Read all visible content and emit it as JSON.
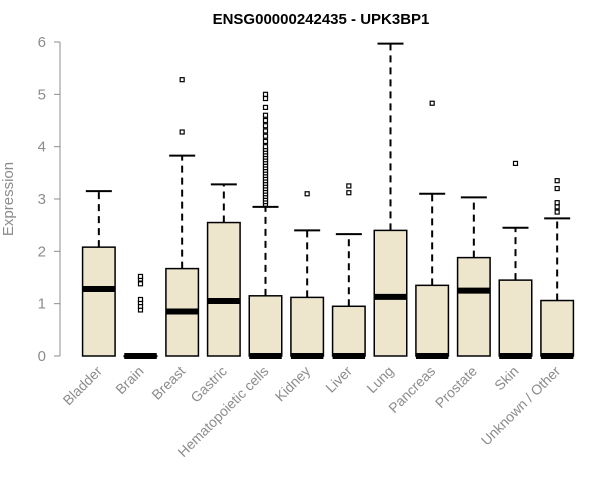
{
  "chart_data": {
    "type": "boxplot",
    "title": "ENSG00000242435 - UPK3BP1",
    "xlabel": "",
    "ylabel": "Expression",
    "ylim": [
      0,
      6
    ],
    "yticks": [
      0,
      1,
      2,
      3,
      4,
      5,
      6
    ],
    "grid": false,
    "box_color": "#ede6cd",
    "categories": [
      "Bladder",
      "Brain",
      "Breast",
      "Gastric",
      "Hematopoietic cells",
      "Kidney",
      "Liver",
      "Lung",
      "Pancreas",
      "Prostate",
      "Skin",
      "Unknown / Other"
    ],
    "boxes": [
      {
        "whisker_low": 0,
        "q1": 0,
        "median": 1.28,
        "q3": 2.08,
        "whisker_high": 3.15,
        "outliers": []
      },
      {
        "whisker_low": 0,
        "q1": 0,
        "median": 0,
        "q3": 0,
        "whisker_high": 0,
        "outliers": [
          0.88,
          0.95,
          1.02,
          1.08,
          1.38,
          1.47,
          1.52
        ]
      },
      {
        "whisker_low": 0,
        "q1": 0,
        "median": 0.85,
        "q3": 1.67,
        "whisker_high": 3.83,
        "outliers": [
          4.28,
          5.28
        ]
      },
      {
        "whisker_low": 0,
        "q1": 0,
        "median": 1.05,
        "q3": 2.55,
        "whisker_high": 3.28,
        "outliers": []
      },
      {
        "whisker_low": 0,
        "q1": 0,
        "median": 0,
        "q3": 1.15,
        "whisker_high": 2.85,
        "outliers": [
          2.9,
          2.95,
          3.0,
          3.05,
          3.1,
          3.15,
          3.2,
          3.25,
          3.3,
          3.35,
          3.4,
          3.45,
          3.5,
          3.55,
          3.6,
          3.65,
          3.7,
          3.75,
          3.8,
          3.85,
          3.9,
          3.95,
          4.0,
          4.1,
          4.2,
          4.3,
          4.4,
          4.5,
          4.6,
          4.75,
          4.92,
          5.0
        ]
      },
      {
        "whisker_low": 0,
        "q1": 0,
        "median": 0,
        "q3": 1.12,
        "whisker_high": 2.4,
        "outliers": [
          3.1
        ]
      },
      {
        "whisker_low": 0,
        "q1": 0,
        "median": 0,
        "q3": 0.95,
        "whisker_high": 2.33,
        "outliers": [
          3.12,
          3.25
        ]
      },
      {
        "whisker_low": 0,
        "q1": 0,
        "median": 1.13,
        "q3": 2.4,
        "whisker_high": 5.97,
        "outliers": []
      },
      {
        "whisker_low": 0,
        "q1": 0,
        "median": 0,
        "q3": 1.35,
        "whisker_high": 3.1,
        "outliers": [
          4.83
        ]
      },
      {
        "whisker_low": 0,
        "q1": 0,
        "median": 1.25,
        "q3": 1.88,
        "whisker_high": 3.03,
        "outliers": []
      },
      {
        "whisker_low": 0,
        "q1": 0,
        "median": 0,
        "q3": 1.45,
        "whisker_high": 2.45,
        "outliers": [
          3.68
        ]
      },
      {
        "whisker_low": 0,
        "q1": 0,
        "median": 0,
        "q3": 1.06,
        "whisker_high": 2.63,
        "outliers": [
          2.75,
          2.85,
          2.93,
          3.2,
          3.35
        ]
      }
    ]
  }
}
